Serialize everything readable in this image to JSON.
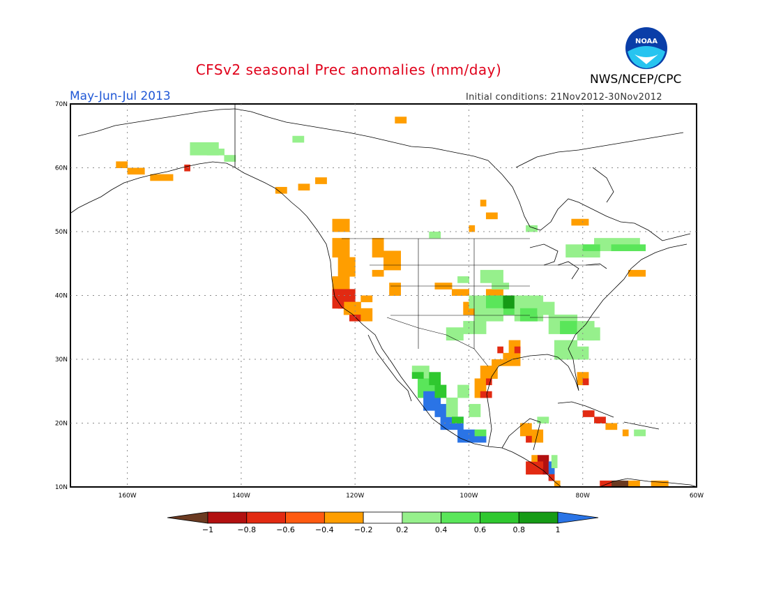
{
  "title": "CFSv2 seasonal Prec anomalies (mm/day)",
  "period": "May-Jun-Jul 2013",
  "initial_conditions": "Initial conditions: 21Nov2012-30Nov2012",
  "agency": "NWS/NCEP/CPC",
  "logo_text": "NOAA",
  "lat_labels": [
    "70N",
    "60N",
    "50N",
    "40N",
    "30N",
    "20N",
    "10N"
  ],
  "lon_labels": [
    "160W",
    "140W",
    "120W",
    "100W",
    "80W",
    "60W"
  ],
  "colorbar": {
    "labels": [
      "−1",
      "−0.8",
      "−0.6",
      "−0.4",
      "−0.2",
      "0.2",
      "0.4",
      "0.6",
      "0.8",
      "1"
    ],
    "colors": [
      "#6b3a21",
      "#b21010",
      "#e22a12",
      "#ff5a10",
      "#ff9e00",
      "#ffffff",
      "#96f08c",
      "#5ae65a",
      "#2fc82f",
      "#169b16",
      "#2a74e6"
    ]
  },
  "colors": {
    "dark_red": "#b21010",
    "red": "#e22a12",
    "orange_red": "#ff5a10",
    "orange": "#ff9e00",
    "light_green": "#96f08c",
    "green": "#5ae65a",
    "mid_green": "#2fc82f",
    "dark_green": "#169b16",
    "blue": "#2a74e6",
    "brown": "#6b3a21"
  }
}
